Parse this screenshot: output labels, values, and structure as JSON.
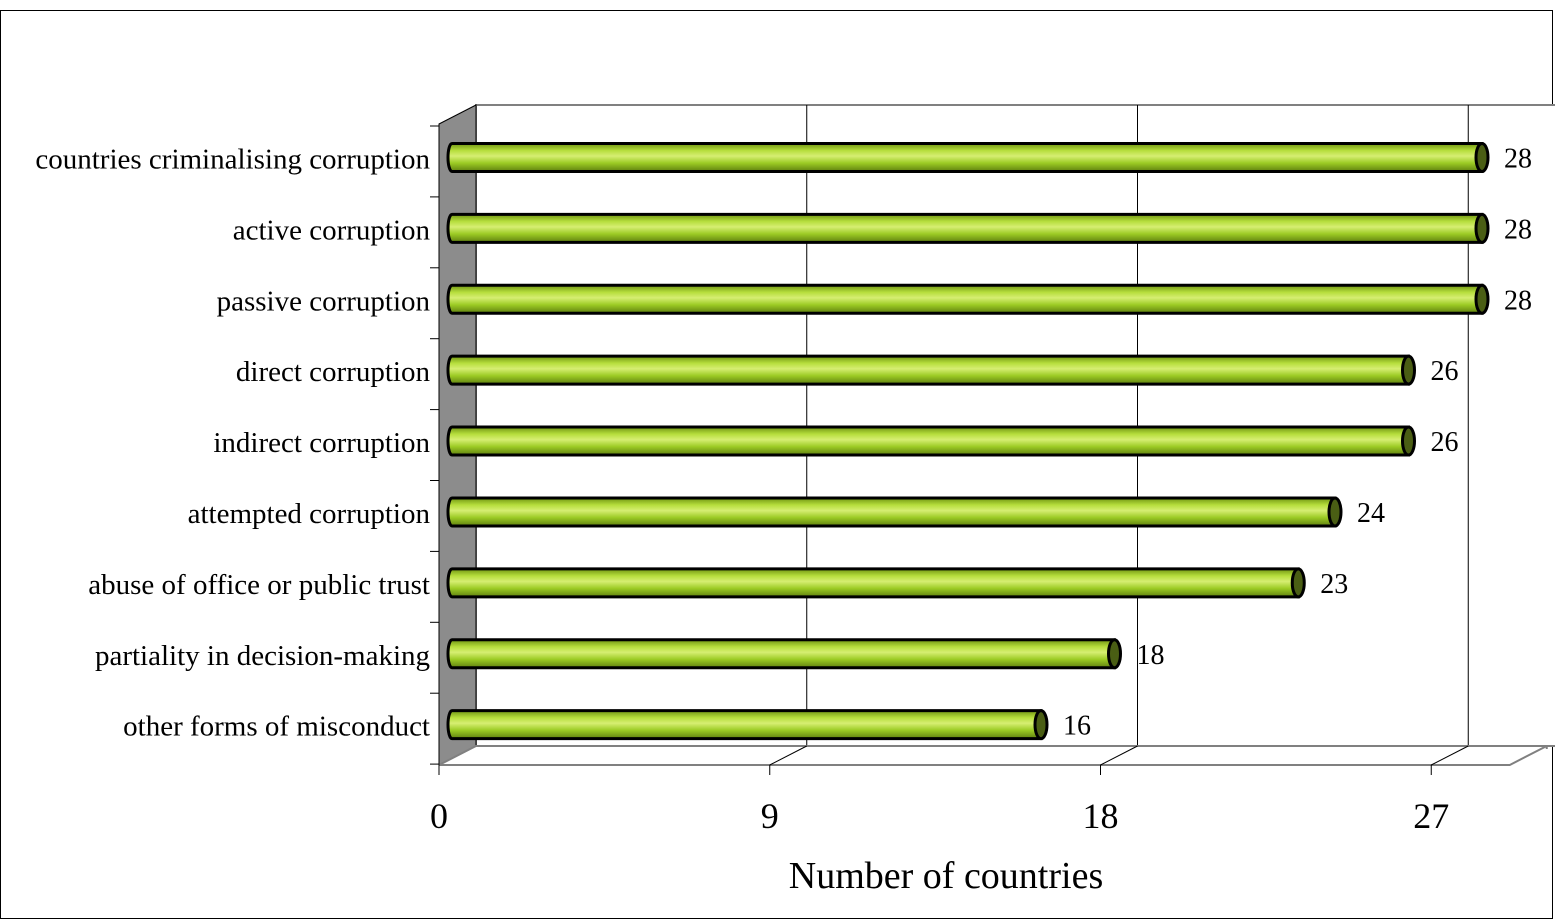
{
  "chart_data": {
    "type": "bar",
    "orientation": "horizontal",
    "style": "3d-cylinder",
    "categories": [
      "countries criminalising corruption",
      "active corruption",
      "passive corruption",
      "direct corruption",
      "indirect corruption",
      "attempted corruption",
      "abuse of office or public trust",
      "partiality in decision-making",
      "other forms of misconduct"
    ],
    "values": [
      28,
      28,
      28,
      26,
      26,
      24,
      23,
      18,
      16
    ],
    "xlabel": "Number of countries",
    "ylabel": "",
    "title": "",
    "xlim": [
      0,
      29
    ],
    "xticks": [
      0,
      9,
      18,
      27
    ],
    "grid": true,
    "legend": "none",
    "colors": {
      "bar_fill": "#8fbf1e",
      "bar_highlight": "#cde85a",
      "bar_cap": "#4a5e14",
      "bar_outline": "#000000",
      "side_wall": "#8c8c8c",
      "gridline": "#000000",
      "plot_border": "#808080"
    }
  }
}
